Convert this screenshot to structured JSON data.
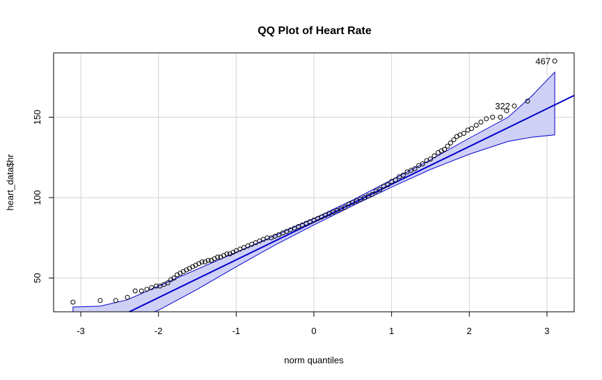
{
  "chart_data": {
    "type": "scatter",
    "title": "QQ Plot of Heart Rate",
    "xlabel": "norm quantiles",
    "ylabel": "heart_data$hr",
    "xlim": [
      -3.35,
      3.35
    ],
    "ylim": [
      29,
      190
    ],
    "x_ticks": [
      -3,
      -2,
      -1,
      0,
      1,
      2,
      3
    ],
    "y_ticks": [
      50,
      100,
      150
    ],
    "grid": true,
    "colors": {
      "points": "#000000",
      "line": "#0000cc",
      "band_fill": "#cfd0f5",
      "band_edge": "#0000cc",
      "grid": "#d3d3d3"
    },
    "reference_line": {
      "intercept": 84.8,
      "slope": 23.5
    },
    "envelope": {
      "x": [
        -3.1,
        -2.75,
        -2.4,
        -2.0,
        -1.5,
        -1.0,
        -0.5,
        0.0,
        0.5,
        1.0,
        1.5,
        2.0,
        2.5,
        2.8,
        3.1
      ],
      "lower": [
        24.0,
        20.0,
        23.0,
        30.0,
        43.0,
        57.0,
        70.5,
        83.0,
        95.0,
        106.5,
        117.5,
        127.0,
        135.0,
        137.5,
        139.0
      ],
      "upper": [
        32.0,
        32.5,
        36.5,
        45.0,
        55.5,
        66.0,
        76.5,
        87.0,
        98.5,
        111.0,
        123.5,
        137.0,
        150.0,
        163.0,
        178.0
      ]
    },
    "labeled_points": [
      {
        "label": "467",
        "x": 3.1,
        "y": 185
      },
      {
        "label": "322",
        "x": 2.58,
        "y": 157
      }
    ],
    "series": [
      {
        "x": [
          -3.1,
          -2.75,
          -2.55,
          -2.4,
          -2.3,
          -2.22,
          -2.15,
          -2.09,
          -2.03,
          -1.98,
          -1.93,
          -1.88,
          -1.84,
          -1.8,
          -1.76,
          -1.72,
          -1.68,
          -1.64,
          -1.6,
          -1.56,
          -1.52,
          -1.48,
          -1.44,
          -1.4,
          -1.36,
          -1.32,
          -1.28,
          -1.24,
          -1.2,
          -1.16,
          -1.12,
          -1.08,
          -1.04,
          -1.0,
          -0.95,
          -0.9,
          -0.85,
          -0.8,
          -0.75,
          -0.7,
          -0.65,
          -0.6,
          -0.55,
          -0.5,
          -0.45,
          -0.4,
          -0.35,
          -0.3,
          -0.25,
          -0.2,
          -0.15,
          -0.1,
          -0.05,
          0.0,
          0.05,
          0.1,
          0.15,
          0.2,
          0.25,
          0.3,
          0.35,
          0.4,
          0.45,
          0.5,
          0.55,
          0.6,
          0.65,
          0.7,
          0.75,
          0.8,
          0.85,
          0.9,
          0.95,
          1.0,
          1.05,
          1.1,
          1.15,
          1.2,
          1.25,
          1.3,
          1.35,
          1.4,
          1.45,
          1.5,
          1.55,
          1.6,
          1.64,
          1.68,
          1.72,
          1.76,
          1.8,
          1.84,
          1.88,
          1.93,
          1.98,
          2.03,
          2.09,
          2.15,
          2.22,
          2.3,
          2.4,
          2.48,
          2.58,
          2.75,
          3.1
        ],
        "y": [
          35,
          36,
          36,
          38,
          42,
          42,
          43,
          44,
          45,
          45,
          46,
          47,
          49,
          50,
          52,
          53,
          54,
          55,
          56,
          57,
          58,
          59,
          60,
          60,
          61,
          61,
          62,
          63,
          63,
          64,
          65,
          65,
          66,
          67,
          68,
          69,
          70,
          71,
          72,
          73,
          74,
          75,
          75,
          76,
          77,
          78,
          79,
          80,
          81,
          82,
          83,
          84,
          85,
          86,
          87,
          88,
          89,
          90,
          91,
          92,
          93,
          94,
          96,
          97,
          98,
          99,
          100,
          101,
          102,
          104,
          105,
          107,
          108,
          110,
          111,
          113,
          114,
          116,
          117,
          118,
          120,
          121,
          123,
          124,
          126,
          128,
          129,
          130,
          132,
          134,
          136,
          138,
          139,
          140,
          142,
          143,
          145,
          147,
          149,
          150,
          150,
          154,
          157,
          160,
          185
        ]
      }
    ]
  }
}
